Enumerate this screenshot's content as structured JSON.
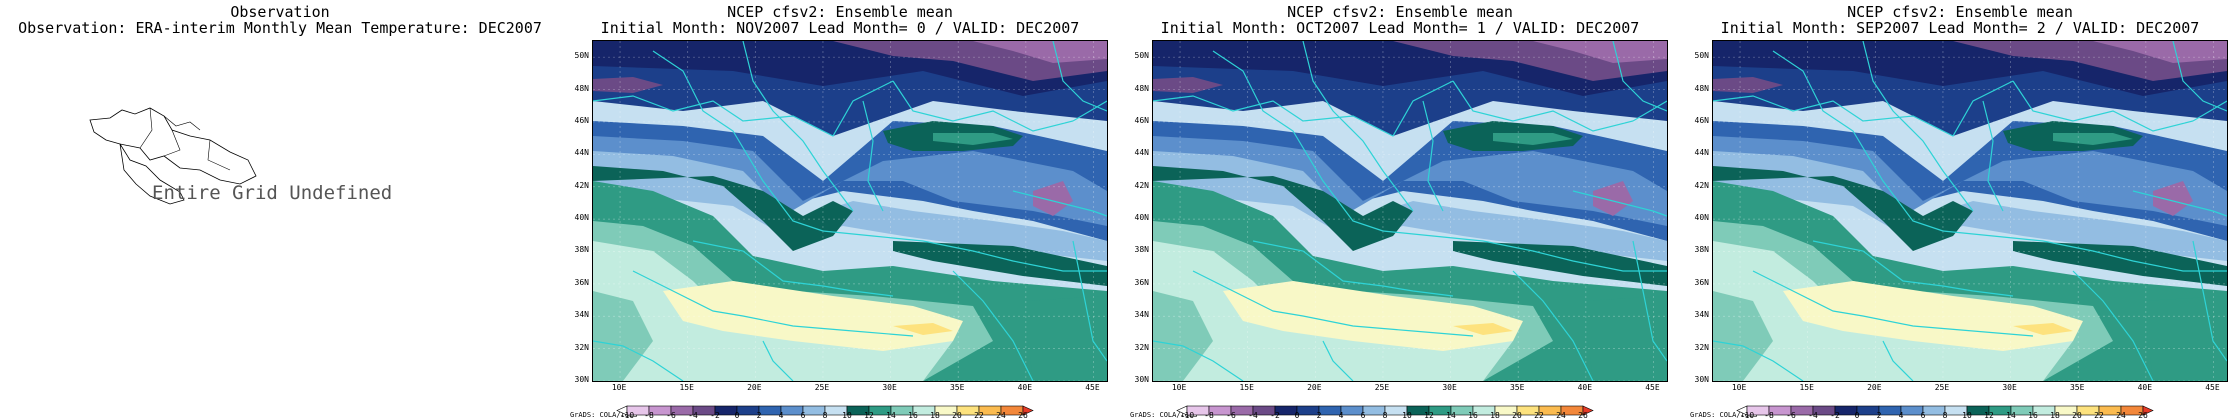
{
  "observation": {
    "title_line1": "Observation",
    "title_line2": "Observation: ERA-interim Monthly Mean Temperature: DEC2007",
    "undefined_text": "Entire Grid Undefined"
  },
  "panels": [
    {
      "line1": "NCEP cfsv2: Ensemble mean",
      "line2": "Initial Month: NOV2007  Lead Month= 0 / VALID: DEC2007"
    },
    {
      "line1": "NCEP cfsv2: Ensemble mean",
      "line2": "Initial Month: OCT2007  Lead Month= 1 / VALID: DEC2007"
    },
    {
      "line1": "NCEP cfsv2: Ensemble mean",
      "line2": "Initial Month: SEP2007  Lead Month= 2 / VALID: DEC2007"
    }
  ],
  "credit": "GrADS: COLA/IGES",
  "chart_data": {
    "type": "heatmap",
    "x_tick_labels": [
      "10E",
      "15E",
      "20E",
      "25E",
      "30E",
      "35E",
      "40E",
      "45E"
    ],
    "y_tick_labels": [
      "30N",
      "32N",
      "34N",
      "36N",
      "38N",
      "40N",
      "42N",
      "44N",
      "46N",
      "48N",
      "50N"
    ],
    "xlim": [
      8,
      46
    ],
    "ylim": [
      30,
      51
    ],
    "colorbar": {
      "labels": [
        "-10",
        "-8",
        "-6",
        "-4",
        "-2",
        "0",
        "2",
        "4",
        "6",
        "8",
        "10",
        "12",
        "14",
        "16",
        "18",
        "20",
        "22",
        "24",
        "26"
      ],
      "colors": [
        "#ffffff",
        "#e7c6ea",
        "#c795cf",
        "#9a6aa8",
        "#6b4a86",
        "#16256a",
        "#1c3f8a",
        "#2f64b0",
        "#5c8fcc",
        "#93bde2",
        "#c6e0f1",
        "#0b6358",
        "#2f9b84",
        "#7fcbb8",
        "#c2ecdf",
        "#f8f8c7",
        "#fde27e",
        "#fbbb4f",
        "#f3873a",
        "#e43a27"
      ]
    },
    "grid": true
  }
}
